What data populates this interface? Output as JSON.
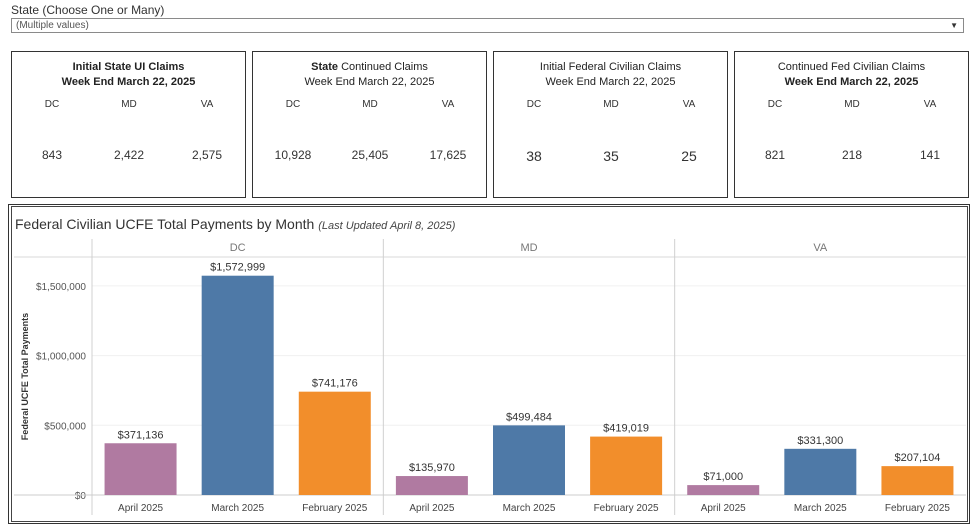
{
  "filter": {
    "label": "State (Choose One or Many)",
    "value": "(Multiple values)",
    "arrow": "▼"
  },
  "cards": [
    {
      "title_bold": "Initial State UI Claims",
      "title_rest": "",
      "subtitle": "Week End March 22, 2025",
      "subtitle_bold": true,
      "states": [
        "DC",
        "MD",
        "VA"
      ],
      "values": [
        "843",
        "2,422",
        "2,575"
      ]
    },
    {
      "title_bold": "State",
      "title_rest": " Continued Claims",
      "subtitle": "Week End March 22, 2025",
      "subtitle_bold": false,
      "states": [
        "DC",
        "MD",
        "VA"
      ],
      "values": [
        "10,928",
        "25,405",
        "17,625"
      ]
    },
    {
      "title_bold": "",
      "title_rest": "Initial Federal Civilian Claims",
      "subtitle": "Week End March 22, 2025",
      "subtitle_bold": false,
      "states": [
        "DC",
        "MD",
        "VA"
      ],
      "values": [
        "38",
        "35",
        "25"
      ]
    },
    {
      "title_bold": "",
      "title_rest": "Continued Fed Civilian Claims",
      "subtitle": "Week End March 22, 2025",
      "subtitle_bold": true,
      "states": [
        "DC",
        "MD",
        "VA"
      ],
      "values": [
        "821",
        "218",
        "141"
      ]
    }
  ],
  "chart_data": {
    "type": "bar",
    "title": "Federal Civilian UCFE Total Payments by Month",
    "title_note": "(Last Updated April 8, 2025)",
    "ylabel": "Federal UCFE Total Payments",
    "xlabel": "",
    "ylim": [
      0,
      1700000
    ],
    "yticks": [
      0,
      500000,
      1000000,
      1500000
    ],
    "ytick_labels": [
      "$0",
      "$500,000",
      "$1,000,000",
      "$1,500,000"
    ],
    "panels": [
      "DC",
      "MD",
      "VA"
    ],
    "categories": [
      "April 2025",
      "March 2025",
      "February 2025"
    ],
    "colors": [
      "#b07aa1",
      "#4e79a7",
      "#f28e2b"
    ],
    "series": [
      {
        "name": "DC",
        "values": [
          371136,
          1572999,
          741176
        ],
        "labels": [
          "$371,136",
          "$1,572,999",
          "$741,176"
        ]
      },
      {
        "name": "MD",
        "values": [
          135970,
          499484,
          419019
        ],
        "labels": [
          "$135,970",
          "$499,484",
          "$419,019"
        ]
      },
      {
        "name": "VA",
        "values": [
          71000,
          331300,
          207104
        ],
        "labels": [
          "$71,000",
          "$331,300",
          "$207,104"
        ]
      }
    ],
    "grid": true
  }
}
